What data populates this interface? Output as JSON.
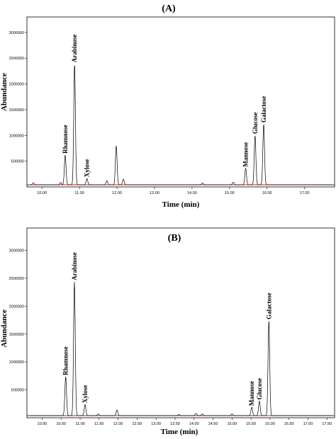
{
  "chart_data": [
    {
      "type": "line",
      "title": "(A)",
      "xlabel": "Time (min)",
      "ylabel": "Abundance",
      "xlim": [
        9.6,
        17.8
      ],
      "ylim": [
        0,
        3300000
      ],
      "x_ticks": [
        10.0,
        11.0,
        12.0,
        13.0,
        14.0,
        15.0,
        16.0,
        17.0
      ],
      "x_tick_labels": [
        "10.00",
        "11.00",
        "12.00",
        "13.00",
        "14.00",
        "15.00",
        "16.00",
        "17.00"
      ],
      "y_ticks": [
        500000,
        1000000,
        1500000,
        2000000,
        2500000,
        3000000
      ],
      "y_tick_labels": [
        "500000",
        "1000000",
        "1500000",
        "2000000",
        "2500000",
        "3000000"
      ],
      "grid": false,
      "series": [
        {
          "peaks": [
            {
              "x": 9.77,
              "y": 40000,
              "label": ""
            },
            {
              "x": 10.5,
              "y": 45000,
              "label": ""
            },
            {
              "x": 10.62,
              "y": 580000,
              "label": "Rhamnose"
            },
            {
              "x": 10.87,
              "y": 2350000,
              "label": "Arabinose"
            },
            {
              "x": 11.2,
              "y": 120000,
              "label": "Xylose"
            },
            {
              "x": 11.73,
              "y": 80000,
              "label": ""
            },
            {
              "x": 11.98,
              "y": 760000,
              "label": ""
            },
            {
              "x": 12.17,
              "y": 110000,
              "label": ""
            },
            {
              "x": 14.28,
              "y": 35000,
              "label": ""
            },
            {
              "x": 15.1,
              "y": 50000,
              "label": ""
            },
            {
              "x": 15.43,
              "y": 320000,
              "label": "Mannose"
            },
            {
              "x": 15.68,
              "y": 960000,
              "label": "Glucose"
            },
            {
              "x": 15.91,
              "y": 1180000,
              "label": "Galactose"
            }
          ]
        }
      ]
    },
    {
      "type": "line",
      "title": "(B)",
      "xlabel": "Time (min)",
      "ylabel": "Abundance",
      "xlim": [
        9.6,
        17.7
      ],
      "ylim": [
        0,
        3400000
      ],
      "x_ticks": [
        10.0,
        10.5,
        11.0,
        11.5,
        12.0,
        12.5,
        13.0,
        13.5,
        14.0,
        14.5,
        15.0,
        15.5,
        16.0,
        16.5,
        17.0,
        17.5
      ],
      "x_tick_labels": [
        "10.00",
        "10.50",
        "11.00",
        "11.50",
        "12.00",
        "12.50",
        "13.00",
        "13.50",
        "14.00",
        "14.50",
        "15.00",
        "15.50",
        "16.00",
        "16.50",
        "17.00",
        "17.50"
      ],
      "y_ticks": [
        500000,
        1000000,
        1500000,
        2000000,
        2500000,
        3000000
      ],
      "y_tick_labels": [
        "500000",
        "1000000",
        "1500000",
        "2000000",
        "2500000",
        "3000000"
      ],
      "grid": false,
      "series": [
        {
          "peaks": [
            {
              "x": 10.62,
              "y": 700000,
              "label": "Rhamnose"
            },
            {
              "x": 10.85,
              "y": 2400000,
              "label": "Arabinose"
            },
            {
              "x": 11.13,
              "y": 200000,
              "label": "Xylose"
            },
            {
              "x": 11.48,
              "y": 30000,
              "label": ""
            },
            {
              "x": 11.97,
              "y": 100000,
              "label": ""
            },
            {
              "x": 13.6,
              "y": 20000,
              "label": ""
            },
            {
              "x": 14.05,
              "y": 40000,
              "label": ""
            },
            {
              "x": 14.22,
              "y": 30000,
              "label": ""
            },
            {
              "x": 15.0,
              "y": 30000,
              "label": ""
            },
            {
              "x": 15.52,
              "y": 150000,
              "label": "Mannose"
            },
            {
              "x": 15.72,
              "y": 260000,
              "label": "Glucose"
            },
            {
              "x": 15.97,
              "y": 1700000,
              "label": "Galactose"
            }
          ]
        }
      ]
    }
  ]
}
